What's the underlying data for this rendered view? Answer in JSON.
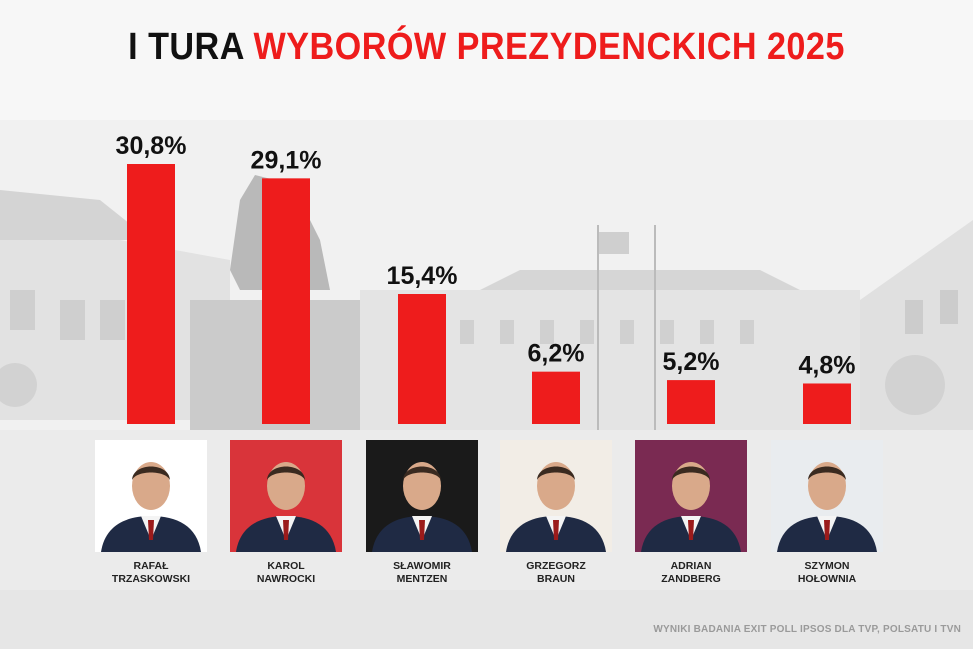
{
  "title": {
    "part1": "I TURA",
    "part2": "WYBORÓW PREZYDENCKICH 2025"
  },
  "colors": {
    "bar": "#ee1c1c",
    "title_black": "#111111",
    "title_red": "#ee1c1c"
  },
  "chart_data": {
    "type": "bar",
    "categories": [
      "RAFAŁ TRZASKOWSKI",
      "KAROL NAWROCKI",
      "SŁAWOMIR MENTZEN",
      "GRZEGORZ BRAUN",
      "ADRIAN ZANDBERG",
      "SZYMON HOŁOWNIA"
    ],
    "values": [
      30.8,
      29.1,
      15.4,
      6.2,
      5.2,
      4.8
    ],
    "labels": [
      "30,8%",
      "29,1%",
      "15,4%",
      "6,2%",
      "5,2%",
      "4,8%"
    ],
    "ylim": [
      0,
      30.8
    ]
  },
  "candidates": [
    {
      "first": "RAFAŁ",
      "last": "TRZASKOWSKI",
      "photo_bg": "#ffffff",
      "icon": "candidate-portrait"
    },
    {
      "first": "KAROL",
      "last": "NAWROCKI",
      "photo_bg": "#d9343a",
      "icon": "candidate-portrait"
    },
    {
      "first": "SŁAWOMIR",
      "last": "MENTZEN",
      "photo_bg": "#1a1a1a",
      "icon": "candidate-portrait"
    },
    {
      "first": "GRZEGORZ",
      "last": "BRAUN",
      "photo_bg": "#f2ede6",
      "icon": "candidate-portrait"
    },
    {
      "first": "ADRIAN",
      "last": "ZANDBERG",
      "photo_bg": "#7a2a52",
      "icon": "candidate-portrait"
    },
    {
      "first": "SZYMON",
      "last": "HOŁOWNIA",
      "photo_bg": "#e9ecef",
      "icon": "candidate-portrait"
    }
  ],
  "source": "WYNIKI BADANIA EXIT POLL IPSOS DLA TVP, POLSATU I TVN"
}
